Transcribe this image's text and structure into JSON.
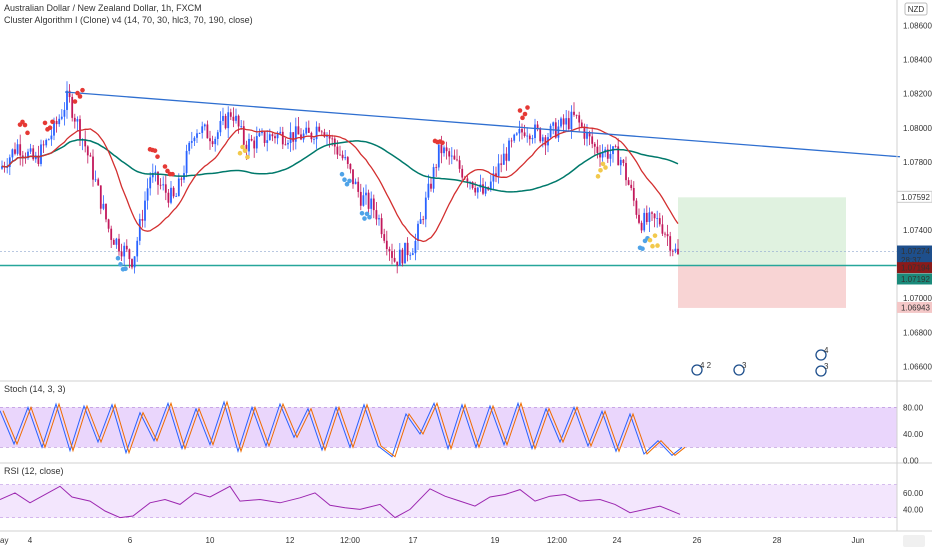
{
  "header": {
    "symbol_line": "Australian Dollar / New Zealand Dollar, 1h, FXCM",
    "indicator_line": "Cluster Algorithm I (Clone) v4 (14, 70, 30, hlc3, 70, 190, close)"
  },
  "currency_badge": "NZD",
  "price_panel": {
    "ticks": [
      {
        "value": 1.066,
        "label": "1.06600"
      },
      {
        "value": 1.068,
        "label": "1.06800"
      },
      {
        "value": 1.07,
        "label": "1.07000"
      },
      {
        "value": 1.072,
        "label": "1.07200"
      },
      {
        "value": 1.074,
        "label": "1.07400"
      },
      {
        "value": 1.076,
        "label": "1.07600"
      },
      {
        "value": 1.078,
        "label": "1.07800"
      },
      {
        "value": 1.08,
        "label": "1.08000"
      },
      {
        "value": 1.082,
        "label": "1.08200"
      },
      {
        "value": 1.084,
        "label": "1.08400"
      },
      {
        "value": 1.086,
        "label": "1.08600"
      }
    ],
    "tags": [
      {
        "value": 1.07592,
        "label": "1.07592",
        "color": "#ffffff",
        "text_color": "#333333",
        "border": "#cccccc"
      },
      {
        "value": 1.07274,
        "label": "1.07274",
        "sub": "28:37",
        "color": "#1e4f8c",
        "text_color": "#ffffff"
      },
      {
        "value": 1.07194,
        "label": "1.07194",
        "color": "#8b1a1a",
        "text_color": "#ffffff"
      },
      {
        "value": 1.07192,
        "label": "1.07192",
        "color": "#1a8a7a",
        "text_color": "#ffffff"
      },
      {
        "value": 1.06943,
        "label": "1.06943",
        "color": "#f4c7c7",
        "text_color": "#333333"
      }
    ]
  },
  "stoch_panel": {
    "title": "Stoch (14, 3, 3)",
    "ticks": [
      {
        "value": 0,
        "label": "0.00"
      },
      {
        "value": 40,
        "label": "40.00"
      },
      {
        "value": 80,
        "label": "80.00"
      }
    ]
  },
  "rsi_panel": {
    "title": "RSI (12, close)",
    "ticks": [
      {
        "value": 40,
        "label": "40.00"
      },
      {
        "value": 60,
        "label": "60.00"
      }
    ]
  },
  "time_axis": {
    "labels": [
      "ay",
      "4",
      "6",
      "10",
      "12",
      "12:00",
      "17",
      "19",
      "12:00",
      "24",
      "26",
      "28",
      "Jun"
    ]
  },
  "event_badges": [
    "4 2",
    "3",
    "4",
    "3"
  ],
  "colors": {
    "up": "#2962ff",
    "down": "#c2185b",
    "ma_red": "#d32f2f",
    "ma_teal": "#00796b",
    "trendline": "#2f6fd0",
    "support": "#26a69a",
    "osc_fill": "#e6cffc",
    "rsi_line": "#9c27b0"
  },
  "chart_data": {
    "type": "line",
    "title": "Australian Dollar / New Zealand Dollar, 1h, FXCM",
    "ylim": [
      1.0652,
      1.0875
    ],
    "price_path": [
      [
        0,
        1.0776
      ],
      [
        18,
        1.079
      ],
      [
        35,
        1.078
      ],
      [
        55,
        1.08
      ],
      [
        68,
        1.0818
      ],
      [
        85,
        1.079
      ],
      [
        110,
        1.0738
      ],
      [
        133,
        1.0722
      ],
      [
        150,
        1.0772
      ],
      [
        175,
        1.0757
      ],
      [
        195,
        1.08
      ],
      [
        215,
        1.0795
      ],
      [
        232,
        1.081
      ],
      [
        245,
        1.079
      ],
      [
        275,
        1.0796
      ],
      [
        310,
        1.0795
      ],
      [
        320,
        1.0803
      ],
      [
        345,
        1.078
      ],
      [
        360,
        1.076
      ],
      [
        375,
        1.0752
      ],
      [
        395,
        1.0722
      ],
      [
        415,
        1.0732
      ],
      [
        440,
        1.0788
      ],
      [
        470,
        1.077
      ],
      [
        485,
        1.076
      ],
      [
        505,
        1.0784
      ],
      [
        525,
        1.08
      ],
      [
        545,
        1.0795
      ],
      [
        575,
        1.0806
      ],
      [
        595,
        1.0788
      ],
      [
        620,
        1.0783
      ],
      [
        640,
        1.0745
      ],
      [
        660,
        1.0745
      ],
      [
        680,
        1.0722
      ]
    ],
    "trendline": [
      [
        65,
        1.0821
      ],
      [
        900,
        1.0783
      ]
    ],
    "support_level": 1.07192,
    "long_position": {
      "entry": 1.07192,
      "target": 1.07592,
      "stop": 1.06943
    },
    "stoch_path": [
      [
        0,
        75
      ],
      [
        14,
        25
      ],
      [
        28,
        80
      ],
      [
        42,
        20
      ],
      [
        56,
        85
      ],
      [
        70,
        15
      ],
      [
        84,
        82
      ],
      [
        98,
        28
      ],
      [
        112,
        84
      ],
      [
        126,
        12
      ],
      [
        140,
        72
      ],
      [
        154,
        30
      ],
      [
        168,
        86
      ],
      [
        182,
        18
      ],
      [
        196,
        78
      ],
      [
        210,
        24
      ],
      [
        224,
        88
      ],
      [
        238,
        14
      ],
      [
        252,
        80
      ],
      [
        266,
        22
      ],
      [
        280,
        85
      ],
      [
        294,
        35
      ],
      [
        308,
        78
      ],
      [
        322,
        16
      ],
      [
        336,
        80
      ],
      [
        350,
        20
      ],
      [
        364,
        84
      ],
      [
        378,
        22
      ],
      [
        392,
        6
      ],
      [
        406,
        70
      ],
      [
        420,
        40
      ],
      [
        434,
        86
      ],
      [
        448,
        18
      ],
      [
        462,
        84
      ],
      [
        476,
        20
      ],
      [
        490,
        82
      ],
      [
        504,
        24
      ],
      [
        518,
        86
      ],
      [
        532,
        18
      ],
      [
        546,
        78
      ],
      [
        560,
        28
      ],
      [
        574,
        80
      ],
      [
        588,
        22
      ],
      [
        602,
        74
      ],
      [
        616,
        14
      ],
      [
        630,
        70
      ],
      [
        644,
        10
      ],
      [
        658,
        30
      ],
      [
        672,
        8
      ],
      [
        682,
        20
      ]
    ],
    "rsi_path": [
      [
        0,
        52
      ],
      [
        15,
        60
      ],
      [
        30,
        48
      ],
      [
        45,
        58
      ],
      [
        60,
        68
      ],
      [
        72,
        55
      ],
      [
        90,
        50
      ],
      [
        105,
        38
      ],
      [
        120,
        30
      ],
      [
        133,
        32
      ],
      [
        150,
        48
      ],
      [
        165,
        52
      ],
      [
        180,
        46
      ],
      [
        195,
        60
      ],
      [
        210,
        55
      ],
      [
        230,
        68
      ],
      [
        240,
        50
      ],
      [
        260,
        52
      ],
      [
        280,
        48
      ],
      [
        300,
        54
      ],
      [
        315,
        60
      ],
      [
        330,
        45
      ],
      [
        345,
        42
      ],
      [
        360,
        40
      ],
      [
        380,
        46
      ],
      [
        395,
        30
      ],
      [
        410,
        40
      ],
      [
        430,
        65
      ],
      [
        445,
        56
      ],
      [
        460,
        50
      ],
      [
        475,
        44
      ],
      [
        490,
        55
      ],
      [
        505,
        58
      ],
      [
        520,
        64
      ],
      [
        535,
        50
      ],
      [
        550,
        56
      ],
      [
        565,
        58
      ],
      [
        580,
        50
      ],
      [
        600,
        52
      ],
      [
        615,
        46
      ],
      [
        630,
        36
      ],
      [
        645,
        40
      ],
      [
        660,
        44
      ],
      [
        680,
        34
      ]
    ]
  }
}
